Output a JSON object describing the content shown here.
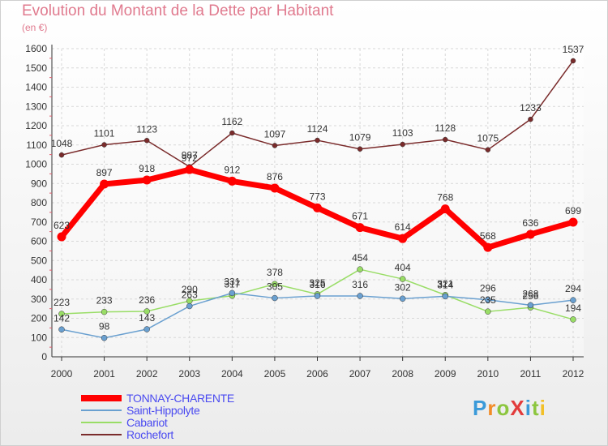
{
  "header": {
    "title": "Evolution du Montant de la Dette par Habitant",
    "unit": "(en €)"
  },
  "logo": {
    "text": "ProXiti",
    "letters": [
      {
        "ch": "P",
        "color": "#3a9ad9"
      },
      {
        "ch": "r",
        "color": "#f28c28"
      },
      {
        "ch": "o",
        "color": "#8cc63f"
      },
      {
        "ch": "X",
        "color": "#e23b3b"
      },
      {
        "ch": "i",
        "color": "#3a9ad9"
      },
      {
        "ch": "t",
        "color": "#8cc63f"
      },
      {
        "ch": "i",
        "color": "#f2c028"
      }
    ]
  },
  "chart_data": {
    "type": "line",
    "title": "Evolution du Montant de la Dette par Habitant",
    "ylabel": "(en €)",
    "x": [
      "2000",
      "2001",
      "2002",
      "2003",
      "2004",
      "2005",
      "2006",
      "2007",
      "2008",
      "2009",
      "2010",
      "2011",
      "2012"
    ],
    "ylim": [
      0,
      1600
    ],
    "yticks": [
      "0",
      "100",
      "200",
      "300",
      "400",
      "500",
      "600",
      "700",
      "800",
      "900",
      "1000",
      "1100",
      "1200",
      "1300",
      "1400",
      "1500",
      "1600"
    ],
    "grid": true,
    "legend_position": "bottom-left",
    "series": [
      {
        "name": "TONNAY-CHARENTE",
        "color": "#ff0000",
        "values": [
          623,
          897,
          918,
          972,
          912,
          876,
          773,
          671,
          614,
          768,
          568,
          636,
          699
        ],
        "labels": [
          "623",
          "897",
          "918",
          "972",
          "912",
          "876",
          "773",
          "671",
          "614",
          "768",
          "568",
          "636",
          "699"
        ]
      },
      {
        "name": "Saint-Hippolyte",
        "color": "#6aa0d0",
        "values": [
          142,
          98,
          143,
          263,
          331,
          305,
          316,
          316,
          302,
          314,
          296,
          268,
          294
        ],
        "labels": [
          "142",
          "98",
          "143",
          "263",
          "331",
          "305",
          "316",
          "316",
          "302",
          "314",
          "296",
          "268",
          "294"
        ]
      },
      {
        "name": "Cabariot",
        "color": "#99dd66",
        "values": [
          223,
          233,
          236,
          290,
          317,
          378,
          325,
          454,
          404,
          321,
          235,
          256,
          194
        ],
        "labels": [
          "223",
          "233",
          "236",
          "290",
          "317",
          "378",
          "325",
          "454",
          "404",
          "321",
          "235",
          "256",
          "194"
        ]
      },
      {
        "name": "Rochefort",
        "color": "#7a2b2b",
        "values": [
          1048,
          1101,
          1123,
          987,
          1162,
          1097,
          1124,
          1079,
          1103,
          1128,
          1075,
          1233,
          1537
        ],
        "labels": [
          "1048",
          "1101",
          "1123",
          "987",
          "1162",
          "1097",
          "1124",
          "1079",
          "1103",
          "1128",
          "1075",
          "1233",
          "1537"
        ]
      }
    ]
  }
}
